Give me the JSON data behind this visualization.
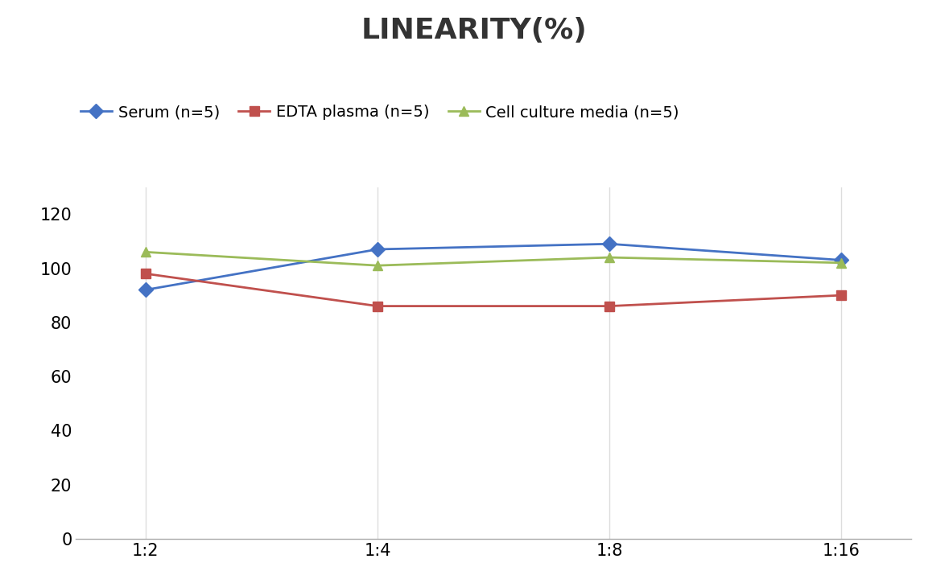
{
  "title": "LINEARITY(%)",
  "x_labels": [
    "1:2",
    "1:4",
    "1:8",
    "1:16"
  ],
  "x_positions": [
    0,
    1,
    2,
    3
  ],
  "series": [
    {
      "label": "Serum (n=5)",
      "values": [
        92,
        107,
        109,
        103
      ],
      "color": "#4472C4",
      "marker": "D",
      "marker_size": 9,
      "linewidth": 2.0
    },
    {
      "label": "EDTA plasma (n=5)",
      "values": [
        98,
        86,
        86,
        90
      ],
      "color": "#C0504D",
      "marker": "s",
      "marker_size": 8,
      "linewidth": 2.0
    },
    {
      "label": "Cell culture media (n=5)",
      "values": [
        106,
        101,
        104,
        102
      ],
      "color": "#9BBB59",
      "marker": "^",
      "marker_size": 9,
      "linewidth": 2.0
    }
  ],
  "ylim": [
    0,
    130
  ],
  "yticks": [
    0,
    20,
    40,
    60,
    80,
    100,
    120
  ],
  "grid_color": "#DDDDDD",
  "background_color": "#FFFFFF",
  "title_fontsize": 26,
  "tick_fontsize": 15,
  "legend_fontsize": 14
}
